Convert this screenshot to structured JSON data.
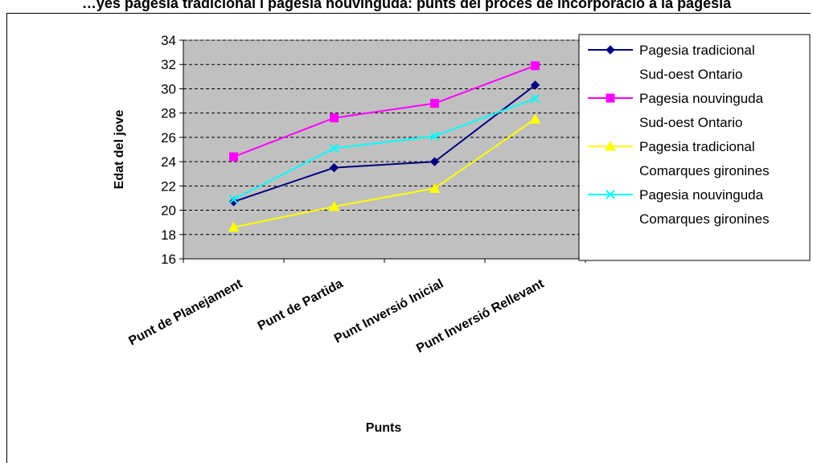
{
  "chart_data": {
    "type": "line",
    "title": "…yes pagesia tradicional i pagesia nouvinguda: punts del procés de incorporació a la pagesia",
    "xlabel": "Punts",
    "ylabel": "Edat del jove",
    "ylim": [
      16,
      34
    ],
    "yticks": [
      "16",
      "18",
      "20",
      "22",
      "24",
      "26",
      "28",
      "30",
      "32",
      "34"
    ],
    "grid": true,
    "legend_position": "right",
    "categories": [
      "Punt de Planejament",
      "Punt de Partida",
      "Punt Inversió Inicial",
      "Punt Inversió Rellevant"
    ],
    "series": [
      {
        "name_lines": [
          "Pagesia tradicional",
          "Sud-oest Ontario"
        ],
        "values": [
          20.7,
          23.5,
          24.0,
          30.3
        ],
        "color": "#000080",
        "marker": "diamond"
      },
      {
        "name_lines": [
          "Pagesia nouvinguda",
          "Sud-oest Ontario"
        ],
        "values": [
          24.4,
          27.6,
          28.8,
          31.9
        ],
        "color": "#ff00ff",
        "marker": "square"
      },
      {
        "name_lines": [
          "Pagesia tradicional",
          "Comarques gironines"
        ],
        "values": [
          18.6,
          20.3,
          21.8,
          27.5
        ],
        "color": "#ffff00",
        "marker": "triangle"
      },
      {
        "name_lines": [
          "Pagesia nouvinguda",
          "Comarques gironines"
        ],
        "values": [
          20.9,
          25.1,
          26.1,
          29.2
        ],
        "color": "#00ffff",
        "marker": "x"
      }
    ]
  }
}
